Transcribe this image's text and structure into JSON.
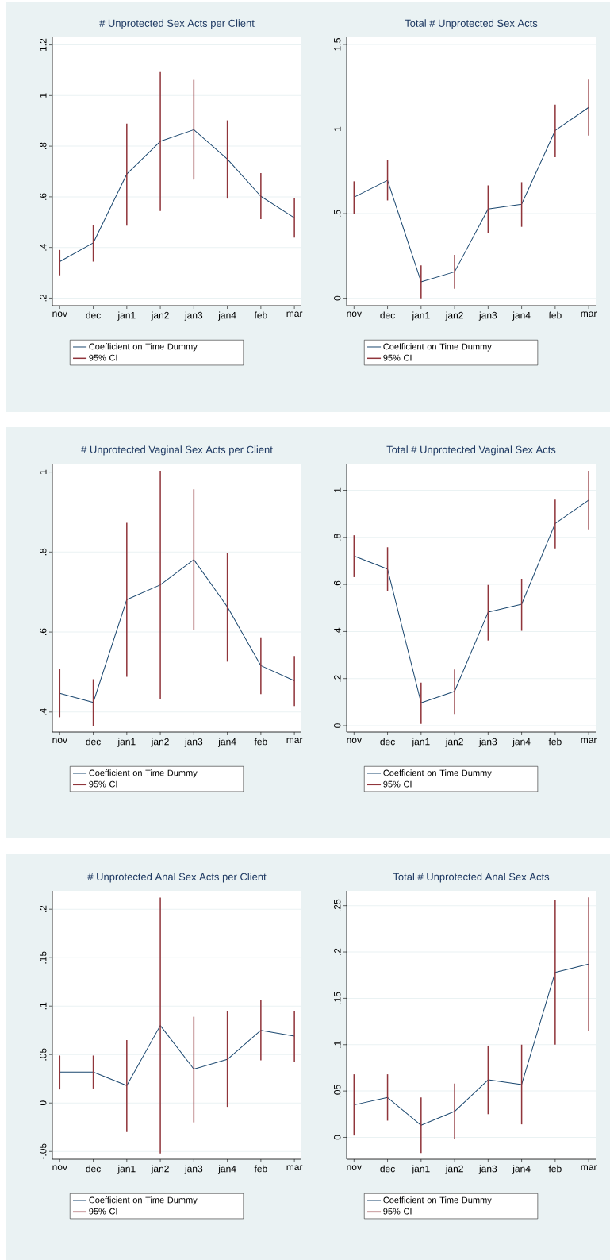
{
  "chart_data": [
    {
      "type": "line",
      "title": "# Unprotected Sex Acts per Client",
      "categories": [
        "nov",
        "dec",
        "jan1",
        "jan2",
        "jan3",
        "jan4",
        "feb",
        "mar"
      ],
      "series": [
        {
          "name": "Coefficient on Time Dummy",
          "color": "#1a476f",
          "values": [
            0.344,
            0.418,
            0.69,
            0.819,
            0.865,
            0.749,
            0.602,
            0.517
          ]
        },
        {
          "name": "95% CI",
          "type": "bar",
          "color": "#90353b",
          "base": [
            0.29,
            0.344,
            0.486,
            0.544,
            0.668,
            0.593,
            0.512,
            0.439
          ],
          "values": [
            0.1,
            0.143,
            0.403,
            0.549,
            0.394,
            0.309,
            0.182,
            0.155
          ]
        }
      ],
      "ylim": [
        0.17,
        1.23
      ],
      "yticks": [
        {
          "value": 0.2,
          "label": ".2"
        },
        {
          "value": 0.4,
          "label": ".4"
        },
        {
          "value": 0.6,
          "label": ".6"
        },
        {
          "value": 0.8,
          "label": ".8"
        },
        1,
        1.2
      ],
      "grid": "y",
      "legend": "bottom"
    },
    {
      "type": "line",
      "title": "Total # Unprotected Sex Acts",
      "categories": [
        "nov",
        "dec",
        "jan1",
        "jan2",
        "jan3",
        "jan4",
        "feb",
        "mar"
      ],
      "series": [
        {
          "name": "Coefficient on Time Dummy",
          "color": "#1a476f",
          "values": [
            0.597,
            0.697,
            0.097,
            0.156,
            0.527,
            0.556,
            0.991,
            1.128
          ]
        },
        {
          "name": "95% CI",
          "type": "bar",
          "color": "#90353b",
          "base": [
            0.498,
            0.578,
            0.0,
            0.056,
            0.384,
            0.422,
            0.834,
            0.961
          ],
          "values": [
            0.193,
            0.238,
            0.194,
            0.2,
            0.283,
            0.264,
            0.31,
            0.331
          ]
        }
      ],
      "ylim": [
        -0.044,
        1.542
      ],
      "yticks": [
        0,
        {
          "value": 0.5,
          "label": ".5"
        },
        1,
        1.5
      ],
      "grid": "y",
      "legend": "bottom"
    },
    {
      "type": "line",
      "title": "# Unprotected Vaginal Sex Acts per Client",
      "categories": [
        "nov",
        "dec",
        "jan1",
        "jan2",
        "jan3",
        "jan4",
        "feb",
        "mar"
      ],
      "series": [
        {
          "name": "Coefficient on Time Dummy",
          "color": "#1a476f",
          "values": [
            0.447,
            0.424,
            0.681,
            0.718,
            0.781,
            0.663,
            0.516,
            0.478
          ]
        },
        {
          "name": "95% CI",
          "type": "bar",
          "color": "#90353b",
          "base": [
            0.387,
            0.365,
            0.488,
            0.432,
            0.604,
            0.526,
            0.445,
            0.415
          ],
          "values": [
            0.121,
            0.117,
            0.385,
            0.571,
            0.353,
            0.272,
            0.142,
            0.125
          ]
        }
      ],
      "ylim": [
        0.35,
        1.021
      ],
      "yticks": [
        {
          "value": 0.4,
          "label": ".4"
        },
        {
          "value": 0.6,
          "label": ".6"
        },
        {
          "value": 0.8,
          "label": ".8"
        },
        1
      ],
      "grid": "y",
      "legend": "bottom"
    },
    {
      "type": "line",
      "title": "Total # Unprotected Vaginal Sex Acts",
      "categories": [
        "nov",
        "dec",
        "jan1",
        "jan2",
        "jan3",
        "jan4",
        "feb",
        "mar"
      ],
      "series": [
        {
          "name": "Coefficient on Time Dummy",
          "color": "#1a476f",
          "values": [
            0.721,
            0.665,
            0.097,
            0.146,
            0.482,
            0.516,
            0.859,
            0.958
          ]
        },
        {
          "name": "95% CI",
          "type": "bar",
          "color": "#90353b",
          "base": [
            0.631,
            0.572,
            0.008,
            0.05,
            0.362,
            0.403,
            0.753,
            0.834
          ],
          "values": [
            0.178,
            0.186,
            0.175,
            0.189,
            0.236,
            0.221,
            0.207,
            0.249
          ]
        }
      ],
      "ylim": [
        -0.027,
        1.113
      ],
      "yticks": [
        0,
        {
          "value": 0.2,
          "label": ".2"
        },
        {
          "value": 0.4,
          "label": ".4"
        },
        {
          "value": 0.6,
          "label": ".6"
        },
        {
          "value": 0.8,
          "label": ".8"
        },
        1
      ],
      "grid": "y",
      "legend": "bottom"
    },
    {
      "type": "line",
      "title": "# Unprotected Anal Sex Acts per Client",
      "categories": [
        "nov",
        "dec",
        "jan1",
        "jan2",
        "jan3",
        "jan4",
        "feb",
        "mar"
      ],
      "series": [
        {
          "name": "Coefficient on Time Dummy",
          "color": "#1a476f",
          "values": [
            0.032,
            0.032,
            0.018,
            0.08,
            0.035,
            0.045,
            0.075,
            0.069
          ]
        },
        {
          "name": "95% CI",
          "type": "bar",
          "color": "#90353b",
          "base": [
            0.014,
            0.015,
            -0.03,
            -0.052,
            -0.02,
            -0.004,
            0.044,
            0.042
          ],
          "values": [
            0.035,
            0.034,
            0.095,
            0.264,
            0.109,
            0.099,
            0.062,
            0.053
          ]
        }
      ],
      "ylim": [
        -0.058,
        0.219
      ],
      "yticks": [
        {
          "value": -0.05,
          "label": "-.05"
        },
        0,
        {
          "value": 0.05,
          "label": ".05"
        },
        {
          "value": 0.1,
          "label": ".1"
        },
        {
          "value": 0.15,
          "label": ".15"
        },
        {
          "value": 0.2,
          "label": ".2"
        }
      ],
      "grid": "y",
      "legend": "bottom"
    },
    {
      "type": "line",
      "title": "Total # Unprotected Anal Sex Acts",
      "categories": [
        "nov",
        "dec",
        "jan1",
        "jan2",
        "jan3",
        "jan4",
        "feb",
        "mar"
      ],
      "series": [
        {
          "name": "Coefficient on Time Dummy",
          "color": "#1a476f",
          "values": [
            0.035,
            0.043,
            0.013,
            0.028,
            0.062,
            0.057,
            0.178,
            0.187
          ]
        },
        {
          "name": "95% CI",
          "type": "bar",
          "color": "#90353b",
          "base": [
            0.002,
            0.018,
            -0.017,
            -0.002,
            0.025,
            0.014,
            0.1,
            0.115
          ],
          "values": [
            0.066,
            0.05,
            0.06,
            0.06,
            0.074,
            0.086,
            0.156,
            0.144
          ]
        }
      ],
      "ylim": [
        -0.0236,
        0.266
      ],
      "yticks": [
        0,
        {
          "value": 0.05,
          "label": ".05"
        },
        {
          "value": 0.1,
          "label": ".1"
        },
        {
          "value": 0.15,
          "label": ".15"
        },
        {
          "value": 0.2,
          "label": ".2"
        },
        {
          "value": 0.25,
          "label": ".25"
        }
      ],
      "grid": "y",
      "legend": "bottom"
    }
  ]
}
